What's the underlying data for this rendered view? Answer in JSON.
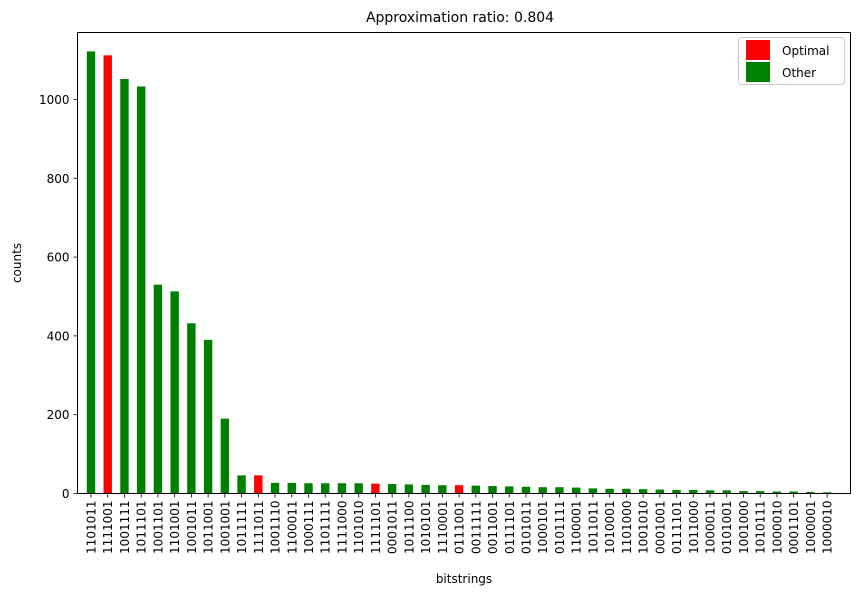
{
  "chart_data": {
    "type": "bar",
    "title": "Approximation ratio: 0.804",
    "xlabel": "bitstrings",
    "ylabel": "counts",
    "ylim": [
      0,
      1170
    ],
    "yticks": [
      0,
      200,
      400,
      600,
      800,
      1000
    ],
    "grid": false,
    "legend_position": "top-right",
    "colors": {
      "Optimal": "#ff0000",
      "Other": "#008000"
    },
    "legend": [
      "Optimal",
      "Other"
    ],
    "categories": [
      "1101011",
      "1111001",
      "1001111",
      "1011101",
      "1001101",
      "1101001",
      "1001011",
      "1011001",
      "1001001",
      "1011111",
      "1111011",
      "1001110",
      "1100011",
      "1000111",
      "1101111",
      "1111000",
      "1101010",
      "1111101",
      "0001011",
      "1011100",
      "1010101",
      "1110001",
      "0111001",
      "0011111",
      "0011001",
      "0111101",
      "0101011",
      "1000101",
      "0101111",
      "1100001",
      "1011011",
      "1010001",
      "1101000",
      "1001010",
      "0001001",
      "0111101",
      "1011000",
      "1000011",
      "0101001",
      "1001000",
      "1010111",
      "1000010",
      "0001101",
      "1000001",
      "1000010"
    ],
    "values": [
      1122,
      1112,
      1052,
      1033,
      530,
      513,
      432,
      390,
      190,
      46,
      46,
      27,
      27,
      26,
      26,
      26,
      26,
      25,
      24,
      23,
      22,
      21,
      21,
      20,
      19,
      18,
      17,
      16,
      16,
      15,
      13,
      12,
      12,
      11,
      10,
      9,
      9,
      8,
      8,
      6,
      6,
      5,
      5,
      4,
      3
    ],
    "series_class": [
      "Other",
      "Optimal",
      "Other",
      "Other",
      "Other",
      "Other",
      "Other",
      "Other",
      "Other",
      "Other",
      "Optimal",
      "Other",
      "Other",
      "Other",
      "Other",
      "Other",
      "Other",
      "Optimal",
      "Other",
      "Other",
      "Other",
      "Other",
      "Optimal",
      "Other",
      "Other",
      "Other",
      "Other",
      "Other",
      "Other",
      "Other",
      "Other",
      "Other",
      "Other",
      "Other",
      "Other",
      "Other",
      "Other",
      "Other",
      "Other",
      "Other",
      "Other",
      "Other",
      "Other",
      "Other",
      "Other"
    ]
  }
}
